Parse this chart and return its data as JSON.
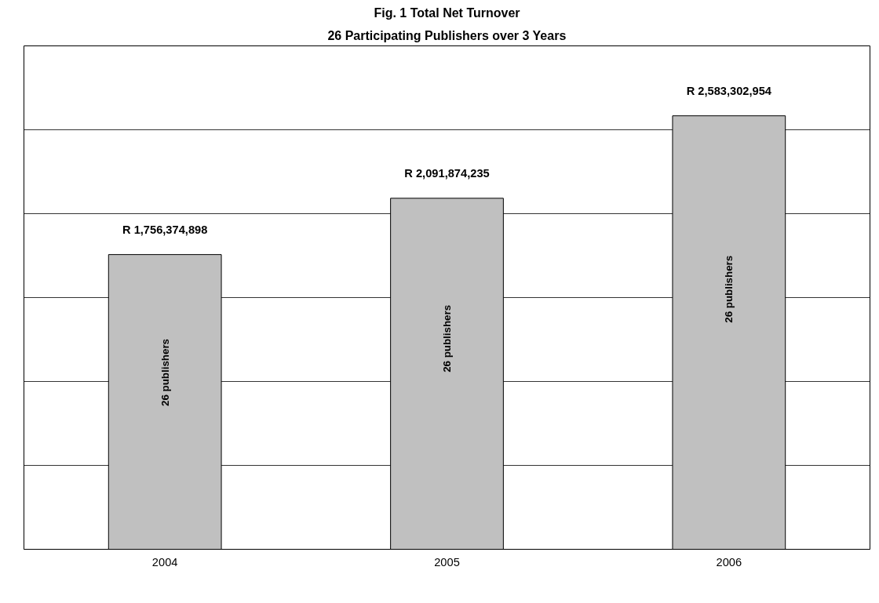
{
  "chart_data": {
    "type": "bar",
    "title": "Fig. 1 Total Net Turnover",
    "subtitle": "26 Participating Publishers over 3 Years",
    "categories": [
      "2004",
      "2005",
      "2006"
    ],
    "values": [
      1756374898,
      2091874235,
      2583302954
    ],
    "color": "#c0c0c0",
    "value_labels": [
      "R 1,756,374,898",
      "R 2,091,874,235",
      "R 2,583,302,954"
    ],
    "annotations": [
      "26 publishers",
      "26 publishers",
      "26 publishers"
    ],
    "ylim": [
      0,
      3000000000
    ],
    "yticks": [
      {
        "value": 0,
        "label": null
      },
      {
        "value": 500000000,
        "label": null
      },
      {
        "value": 1000000000,
        "label": null
      },
      {
        "value": 1500000000,
        "label": null
      },
      {
        "value": 2000000000,
        "label": null
      },
      {
        "value": 2500000000,
        "label": null
      },
      {
        "value": 3000000000,
        "label": null
      }
    ],
    "grid": "y",
    "tick_labels": "x"
  }
}
